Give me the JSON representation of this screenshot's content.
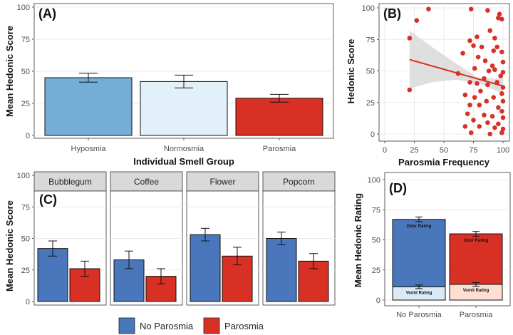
{
  "colors": {
    "no_parosmia": "#4a76bc",
    "parosmia": "#d93025",
    "hyposmia": "#74aed6",
    "normosmia": "#e2f1f9",
    "vomit_no_parosmia": "#dbe8f6",
    "vomit_parosmia": "#fddfd1",
    "scatter": "#d93025",
    "ribbon": "#d9d9d9",
    "strip_bg": "#d9d9d9",
    "grid": "#ebebeb"
  },
  "legend": {
    "items": [
      "No Parosmia",
      "Parosmia"
    ]
  },
  "chart_data": [
    {
      "panel": "A",
      "label": "(A)",
      "type": "bar",
      "categories": [
        "Hyposmia",
        "Normosmia",
        "Parosmia"
      ],
      "values": [
        45,
        42,
        29
      ],
      "error": [
        [
          41.5,
          48.5
        ],
        [
          37,
          47
        ],
        [
          26,
          32
        ]
      ],
      "xlabel": "Individual Smell Group",
      "ylabel": "Mean Hedonic Score",
      "ylim": [
        0,
        100
      ],
      "yticks": [
        0,
        25,
        50,
        75,
        100
      ],
      "grid": true
    },
    {
      "panel": "B",
      "label": "(B)",
      "type": "scatter",
      "xlabel": "Parosmia Frequency",
      "ylabel": "Hedonic Score",
      "xlim": [
        0,
        100
      ],
      "ylim": [
        0,
        100
      ],
      "xticks": [
        0,
        25,
        50,
        75,
        100
      ],
      "yticks": [
        0,
        25,
        50,
        75,
        100
      ],
      "points": [
        [
          21,
          76
        ],
        [
          21,
          35
        ],
        [
          27,
          90
        ],
        [
          37,
          99
        ],
        [
          73,
          99
        ],
        [
          87,
          98
        ],
        [
          97,
          95
        ],
        [
          96,
          92
        ],
        [
          99,
          91
        ],
        [
          89,
          82
        ],
        [
          93,
          76
        ],
        [
          78,
          77
        ],
        [
          72,
          74
        ],
        [
          75,
          70
        ],
        [
          82,
          69
        ],
        [
          95,
          69
        ],
        [
          92,
          66
        ],
        [
          99,
          65
        ],
        [
          66,
          64
        ],
        [
          79,
          61
        ],
        [
          85,
          58
        ],
        [
          100,
          57
        ],
        [
          91,
          54
        ],
        [
          76,
          52
        ],
        [
          88,
          50
        ],
        [
          93,
          51
        ],
        [
          100,
          49
        ],
        [
          98,
          46
        ],
        [
          62,
          48
        ],
        [
          84,
          44
        ],
        [
          72,
          41
        ],
        [
          95,
          41
        ],
        [
          78,
          40
        ],
        [
          87,
          39
        ],
        [
          100,
          37
        ],
        [
          81,
          34
        ],
        [
          99,
          32
        ],
        [
          68,
          31
        ],
        [
          76,
          29
        ],
        [
          92,
          29
        ],
        [
          86,
          26
        ],
        [
          100,
          26
        ],
        [
          72,
          23
        ],
        [
          80,
          23
        ],
        [
          96,
          21
        ],
        [
          99,
          18
        ],
        [
          70,
          16
        ],
        [
          84,
          15
        ],
        [
          91,
          14
        ],
        [
          100,
          13
        ],
        [
          75,
          11
        ],
        [
          87,
          9
        ],
        [
          96,
          8
        ],
        [
          68,
          6
        ],
        [
          80,
          6
        ],
        [
          93,
          5
        ],
        [
          100,
          4
        ],
        [
          73,
          1
        ],
        [
          89,
          0
        ],
        [
          99,
          1
        ]
      ],
      "fit": {
        "x": [
          21,
          100
        ],
        "y": [
          59,
          38
        ]
      },
      "ribbon": {
        "x": [
          21,
          40,
          60,
          80,
          100
        ],
        "lower": [
          36,
          41,
          43,
          40,
          32
        ],
        "upper": [
          82,
          69,
          56,
          44,
          44
        ]
      },
      "grid": true
    },
    {
      "panel": "C",
      "label": "(C)",
      "type": "bar",
      "facets": [
        "Bubblegum",
        "Coffee",
        "Flower",
        "Popcorn"
      ],
      "series": [
        {
          "name": "No Parosmia",
          "values": [
            42,
            33,
            53,
            50
          ],
          "error": [
            [
              36,
              48
            ],
            [
              26,
              40
            ],
            [
              48,
              58
            ],
            [
              45,
              55
            ]
          ]
        },
        {
          "name": "Parosmia",
          "values": [
            26,
            20,
            36,
            32
          ],
          "error": [
            [
              20,
              32
            ],
            [
              14,
              26
            ],
            [
              29,
              43
            ],
            [
              26,
              38
            ]
          ]
        }
      ],
      "ylabel": "Mean Hedonic Score",
      "ylim": [
        0,
        100
      ],
      "yticks": [
        0,
        25,
        50,
        75,
        100
      ],
      "grid": true
    },
    {
      "panel": "D",
      "label": "(D)",
      "type": "bar",
      "stacked": true,
      "categories": [
        "No Parosmia",
        "Parosmia"
      ],
      "segments": [
        {
          "name": "Vomit Rating",
          "values": [
            11,
            13
          ],
          "error": [
            [
              9.5,
              12.5
            ],
            [
              11.5,
              14.5
            ]
          ]
        },
        {
          "name": "Odor Rating",
          "values": [
            67,
            55
          ],
          "error": [
            [
              65,
              69
            ],
            [
              53,
              57
            ]
          ]
        }
      ],
      "ylabel": "Mean Hedonic Rating",
      "ylim": [
        0,
        100
      ],
      "yticks": [
        0,
        25,
        50,
        75,
        100
      ],
      "grid": true
    }
  ]
}
